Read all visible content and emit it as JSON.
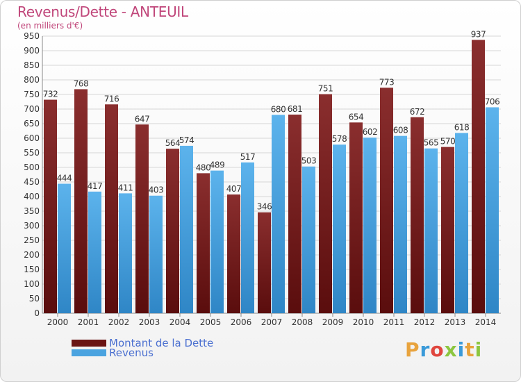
{
  "chart_data": {
    "type": "bar",
    "title": "Revenus/Dette - ANTEUIL",
    "subtitle": "(en milliers d'€)",
    "categories": [
      "2000",
      "2001",
      "2002",
      "2003",
      "2004",
      "2005",
      "2006",
      "2007",
      "2008",
      "2009",
      "2010",
      "2011",
      "2012",
      "2013",
      "2014"
    ],
    "series": [
      {
        "name": "Montant de la Dette",
        "color": "#7a1f1f",
        "values": [
          732,
          768,
          716,
          647,
          564,
          480,
          407,
          346,
          681,
          751,
          654,
          773,
          672,
          570,
          937
        ]
      },
      {
        "name": "Revenus",
        "color": "#4aa3e0",
        "values": [
          444,
          417,
          411,
          403,
          574,
          489,
          517,
          680,
          503,
          578,
          602,
          608,
          565,
          618,
          706
        ]
      }
    ],
    "ylim": [
      0,
      950
    ],
    "ytick_step": 50,
    "grid": true,
    "legend_placement": "bottom-left"
  },
  "logo": {
    "text": "Proxiti",
    "colors": [
      "#e8a33d",
      "#3a9ad9",
      "#e0463e",
      "#8cc63f",
      "#3a9ad9",
      "#e8a33d",
      "#8cc63f"
    ]
  }
}
